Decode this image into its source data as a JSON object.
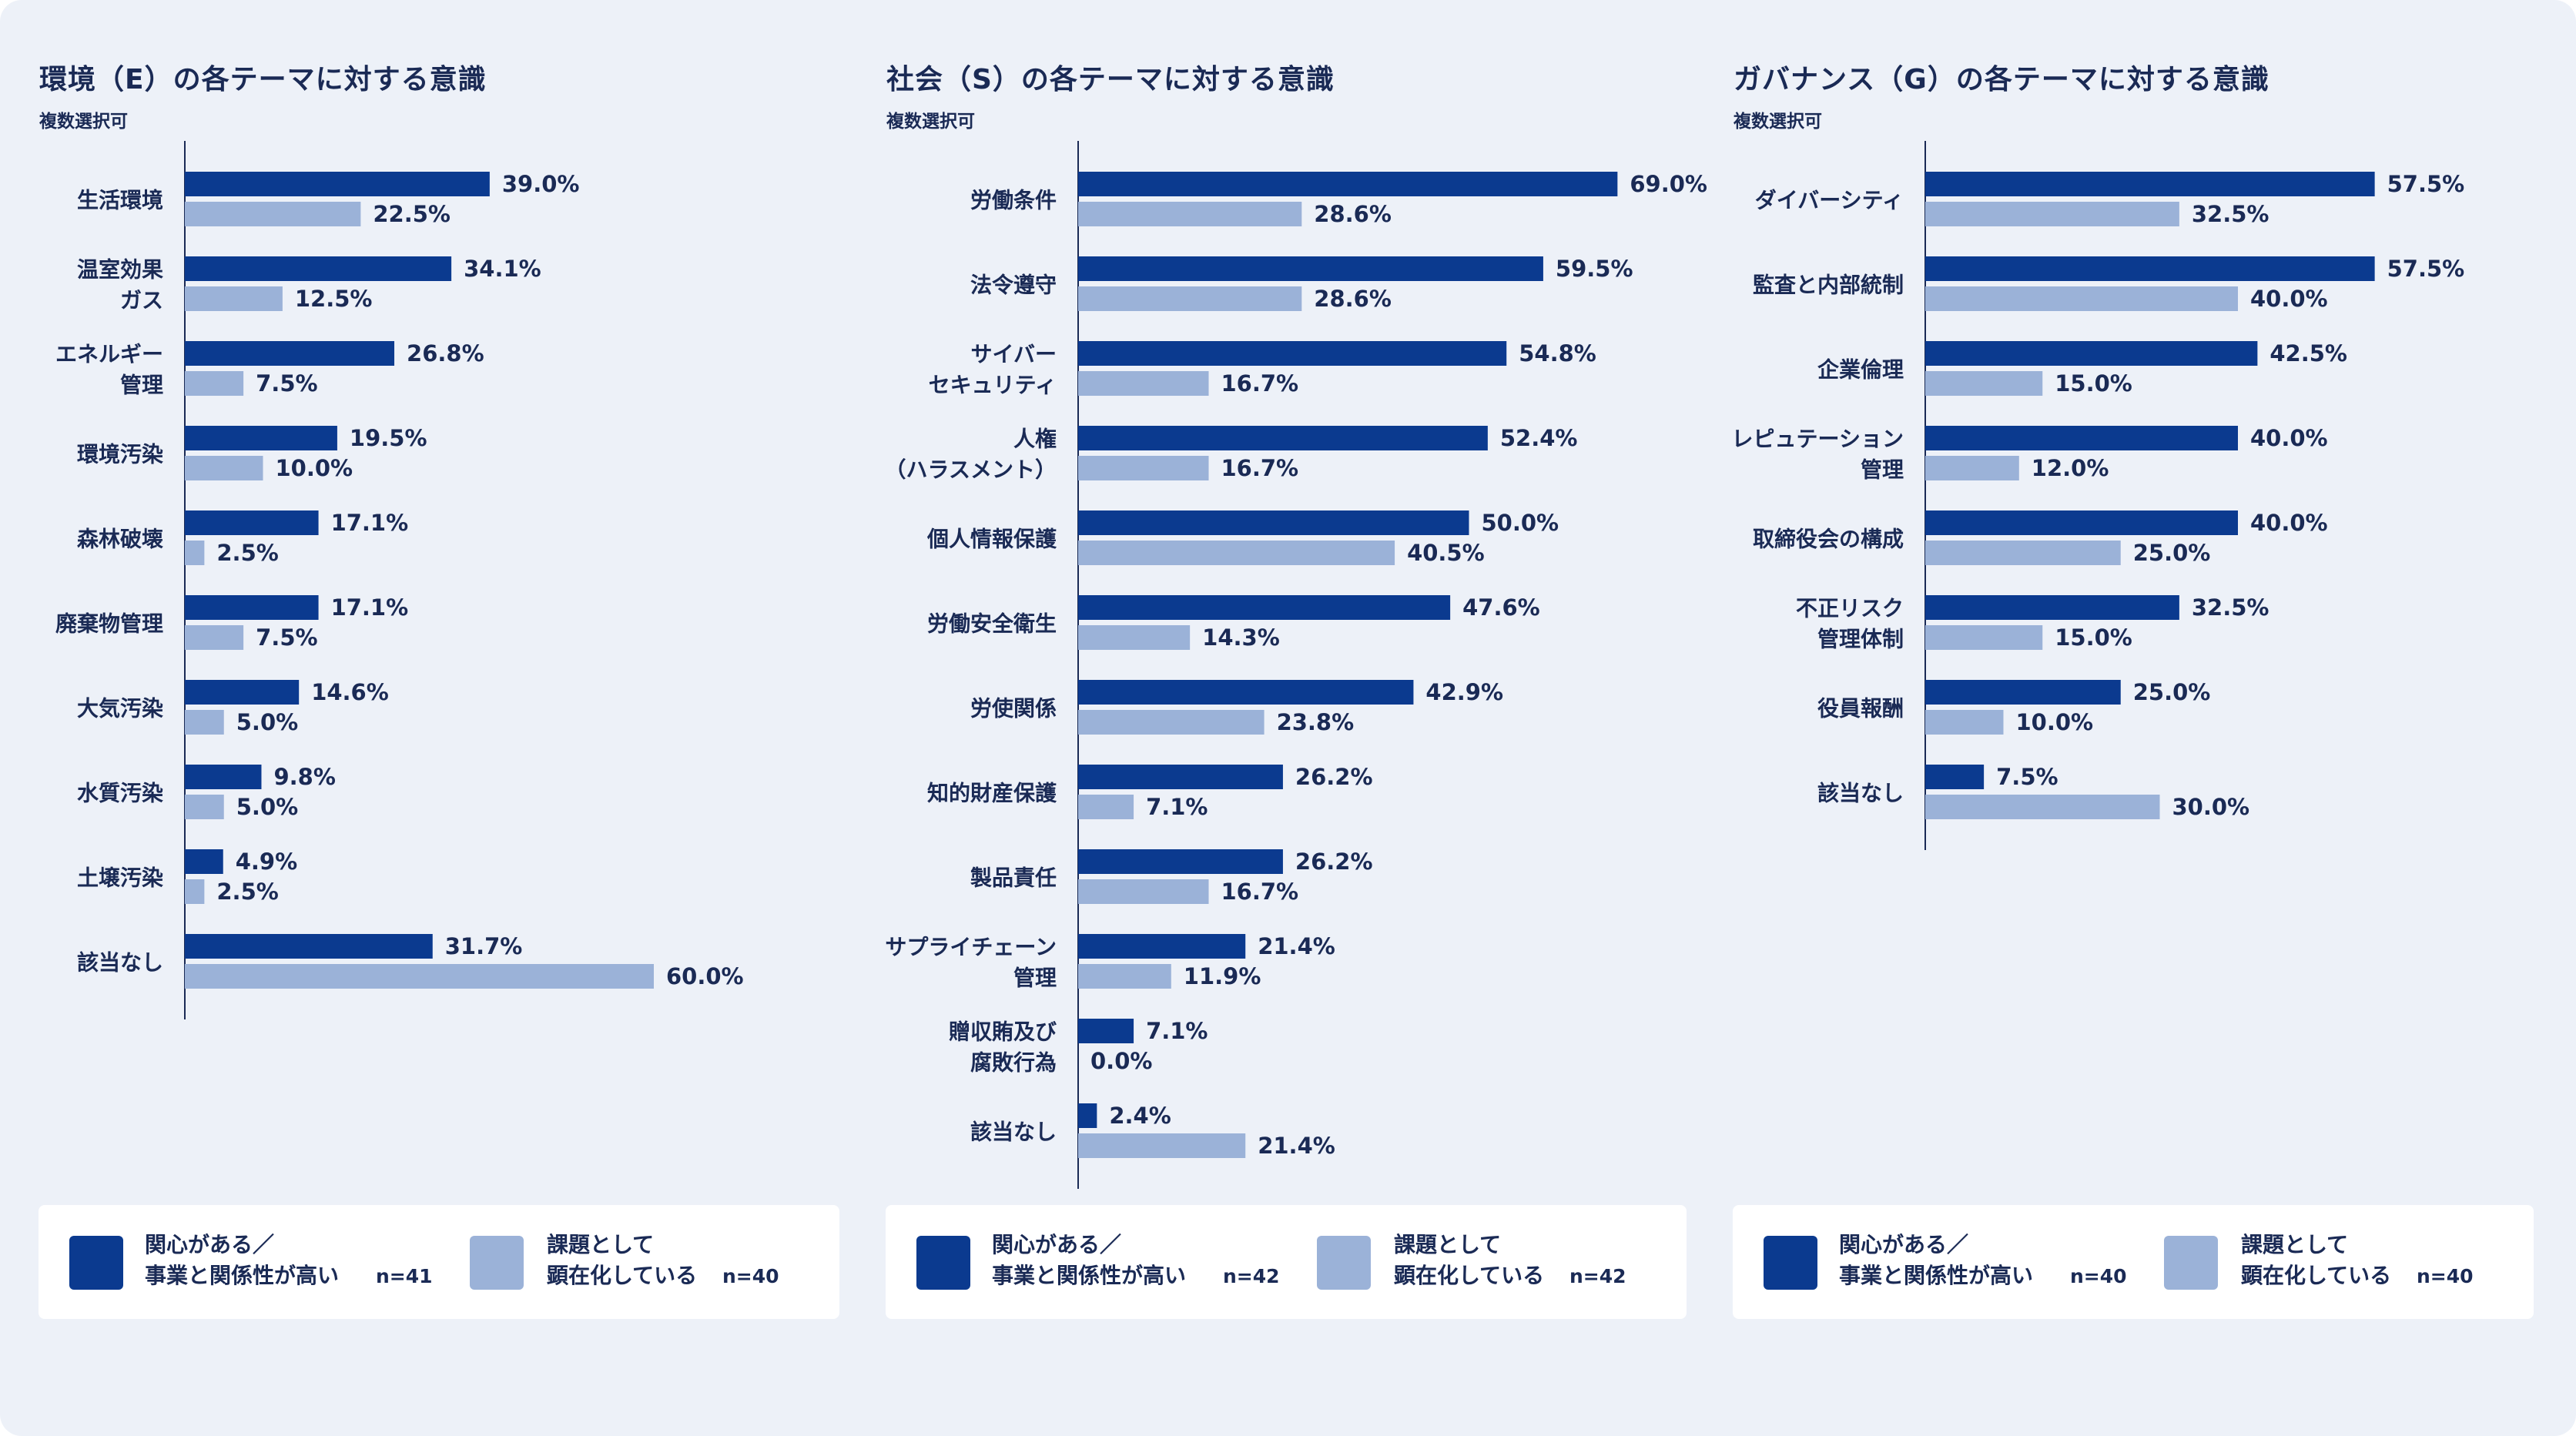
{
  "colors": {
    "primary": "#0b3a8f",
    "secondary": "#9bb2d8",
    "text": "#1a2a55"
  },
  "chart_data": [
    {
      "type": "bar",
      "title": "環境（E）の各テーマに対する意識",
      "subtitle": "複数選択可",
      "categories": [
        "生活環境",
        "温室効果\nガス",
        "エネルギー\n管理",
        "環境汚染",
        "森林破壊",
        "廃棄物管理",
        "大気汚染",
        "水質汚染",
        "土壌汚染",
        "該当なし"
      ],
      "series": [
        {
          "name": "関心がある／\n事業と関係性が高い",
          "n": "n=41",
          "values": [
            39.0,
            34.1,
            26.8,
            19.5,
            17.1,
            17.1,
            14.6,
            9.8,
            4.9,
            31.7
          ],
          "labels": [
            "39.0%",
            "34.1%",
            "26.8%",
            "19.5%",
            "17.1%",
            "17.1%",
            "14.6%",
            "9.8%",
            "4.9%",
            "31.7%"
          ]
        },
        {
          "name": "課題として\n顕在化している",
          "n": "n=40",
          "values": [
            22.5,
            12.5,
            7.5,
            10.0,
            2.5,
            7.5,
            5.0,
            5.0,
            2.5,
            60.0
          ],
          "labels": [
            "22.5%",
            "12.5%",
            "7.5%",
            "10.0%",
            "2.5%",
            "7.5%",
            "5.0%",
            "5.0%",
            "2.5%",
            "60.0%"
          ]
        }
      ],
      "xlim": [
        0,
        70
      ],
      "grid": false,
      "legend": "bottom"
    },
    {
      "type": "bar",
      "title": "社会（S）の各テーマに対する意識",
      "subtitle": "複数選択可",
      "categories": [
        "労働条件",
        "法令遵守",
        "サイバー\nセキュリティ",
        "人権\n（ハラスメント）",
        "個人情報保護",
        "労働安全衛生",
        "労使関係",
        "知的財産保護",
        "製品責任",
        "サプライチェーン\n管理",
        "贈収賄及び\n腐敗行為",
        "該当なし"
      ],
      "series": [
        {
          "name": "関心がある／\n事業と関係性が高い",
          "n": "n=42",
          "values": [
            69.0,
            59.5,
            54.8,
            52.4,
            50.0,
            47.6,
            42.9,
            26.2,
            26.2,
            21.4,
            7.1,
            2.4
          ],
          "labels": [
            "69.0%",
            "59.5%",
            "54.8%",
            "52.4%",
            "50.0%",
            "47.6%",
            "42.9%",
            "26.2%",
            "26.2%",
            "21.4%",
            "7.1%",
            "2.4%"
          ]
        },
        {
          "name": "課題として\n顕在化している",
          "n": "n=42",
          "values": [
            28.6,
            28.6,
            16.7,
            16.7,
            40.5,
            14.3,
            23.8,
            7.1,
            16.7,
            11.9,
            0.0,
            21.4
          ],
          "labels": [
            "28.6%",
            "28.6%",
            "16.7%",
            "16.7%",
            "40.5%",
            "14.3%",
            "23.8%",
            "7.1%",
            "16.7%",
            "11.9%",
            "0.0%",
            "21.4%"
          ]
        }
      ],
      "xlim": [
        0,
        70
      ],
      "grid": false,
      "legend": "bottom"
    },
    {
      "type": "bar",
      "title": "ガバナンス（G）の各テーマに対する意識",
      "subtitle": "複数選択可",
      "categories": [
        "ダイバーシティ",
        "監査と内部統制",
        "企業倫理",
        "レピュテーション\n管理",
        "取締役会の構成",
        "不正リスク\n管理体制",
        "役員報酬",
        "該当なし"
      ],
      "series": [
        {
          "name": "関心がある／\n事業と関係性が高い",
          "n": "n=40",
          "values": [
            57.5,
            57.5,
            42.5,
            40.0,
            40.0,
            32.5,
            25.0,
            7.5
          ],
          "labels": [
            "57.5%",
            "57.5%",
            "42.5%",
            "40.0%",
            "40.0%",
            "32.5%",
            "25.0%",
            "7.5%"
          ]
        },
        {
          "name": "課題として\n顕在化している",
          "n": "n=40",
          "values": [
            32.5,
            40.0,
            15.0,
            12.0,
            25.0,
            15.0,
            10.0,
            30.0
          ],
          "labels": [
            "32.5%",
            "40.0%",
            "15.0%",
            "12.0%",
            "25.0%",
            "15.0%",
            "10.0%",
            "30.0%"
          ]
        }
      ],
      "xlim": [
        0,
        70
      ],
      "grid": false,
      "legend": "bottom"
    }
  ]
}
